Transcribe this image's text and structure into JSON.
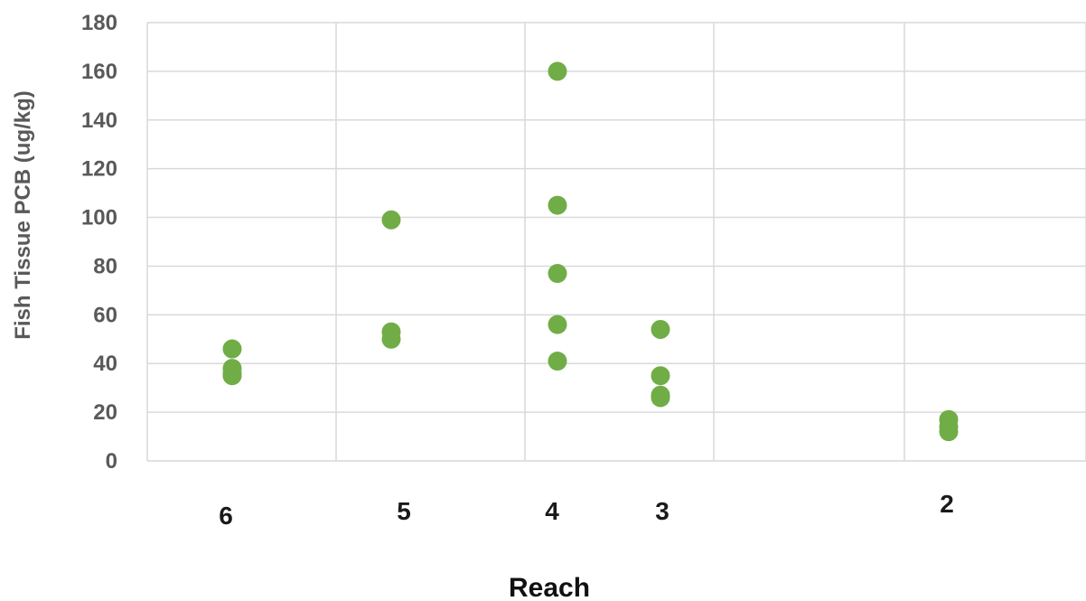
{
  "chart_data": {
    "type": "scatter",
    "title": "",
    "xlabel": "Reach",
    "ylabel": "Fish Tissue PCB (ug/kg)",
    "ylim": [
      0,
      180
    ],
    "yticks": [
      0,
      20,
      40,
      60,
      80,
      100,
      120,
      140,
      160,
      180
    ],
    "categories": [
      "6",
      "5",
      "4",
      "3",
      "2"
    ],
    "grid": true,
    "legend": "none",
    "marker_color": "#70ad47",
    "series": [
      {
        "points": [
          {
            "x": "6",
            "y": 46
          },
          {
            "x": "6",
            "y": 38
          },
          {
            "x": "6",
            "y": 36
          },
          {
            "x": "6",
            "y": 35
          },
          {
            "x": "5",
            "y": 99
          },
          {
            "x": "5",
            "y": 53
          },
          {
            "x": "5",
            "y": 50
          },
          {
            "x": "4",
            "y": 160
          },
          {
            "x": "4",
            "y": 105
          },
          {
            "x": "4",
            "y": 77
          },
          {
            "x": "4",
            "y": 56
          },
          {
            "x": "4",
            "y": 41
          },
          {
            "x": "3",
            "y": 54
          },
          {
            "x": "3",
            "y": 35
          },
          {
            "x": "3",
            "y": 27
          },
          {
            "x": "3",
            "y": 26
          },
          {
            "x": "2",
            "y": 17
          },
          {
            "x": "2",
            "y": 14
          },
          {
            "x": "2",
            "y": 12
          }
        ]
      }
    ]
  }
}
